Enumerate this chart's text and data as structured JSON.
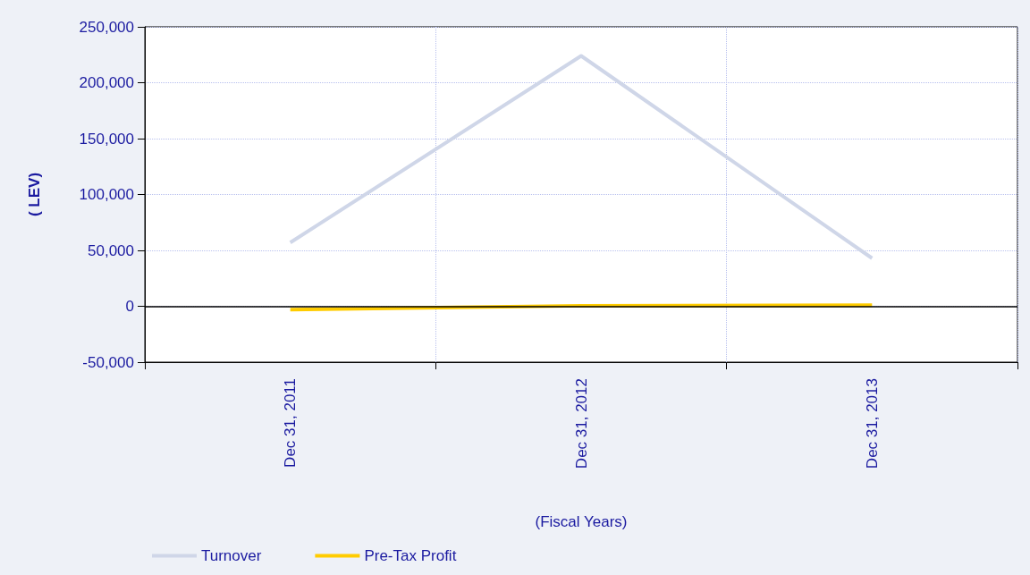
{
  "chart_data": {
    "type": "line",
    "xlabel": "(Fiscal Years)",
    "ylabel": "( LEV)",
    "categories": [
      "Dec 31, 2011",
      "Dec 31, 2012",
      "Dec 31, 2013"
    ],
    "series": [
      {
        "name": "Turnover",
        "color": "#cfd6e8",
        "values": [
          57000,
          224000,
          43000
        ]
      },
      {
        "name": "Pre-Tax Profit",
        "color": "#ffcc00",
        "values": [
          -3000,
          500,
          1000
        ]
      }
    ],
    "ylim": [
      -50000,
      250000
    ],
    "yticks": [
      {
        "value": -50000,
        "label": "-50,000"
      },
      0,
      {
        "value": 50000,
        "label": "50,000"
      },
      {
        "value": 100000,
        "label": "100,000"
      },
      {
        "value": 150000,
        "label": "150,000"
      },
      {
        "value": 200000,
        "label": "200,000"
      },
      {
        "value": 250000,
        "label": "250,000"
      }
    ],
    "ref_lines": [
      {
        "axis": "y",
        "value": 0,
        "color": "#000000"
      }
    ],
    "grid": true,
    "legend": "bottom left",
    "marker": "none",
    "line_style": "solid"
  }
}
